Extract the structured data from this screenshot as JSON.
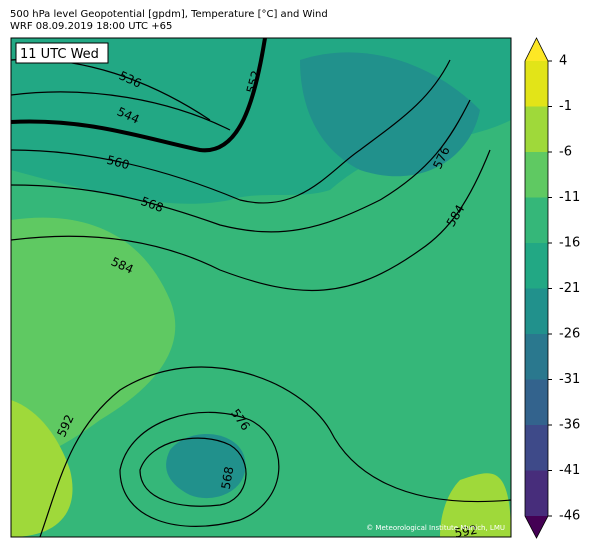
{
  "header": {
    "line1": "500 hPa level Geopotential [gpdm], Temperature [°C] and Wind",
    "line2": "WRF 08.09.2019 18:00 UTC +65"
  },
  "map": {
    "time_label": "11 UTC Wed",
    "contour_labels": [
      "536",
      "544",
      "552",
      "560",
      "568",
      "584",
      "576",
      "584",
      "592",
      "576",
      "568",
      "592"
    ],
    "credit": "© Meteorological Institute Munich, LMU"
  },
  "colorbar": {
    "ticks": [
      4,
      -1,
      -6,
      -11,
      -16,
      -21,
      -26,
      -31,
      -36,
      -41,
      -46
    ],
    "colors": [
      "#e2e418",
      "#9fd93a",
      "#5fc962",
      "#35b779",
      "#22a884",
      "#21918c",
      "#2a788e",
      "#33638d",
      "#3e4a89",
      "#472d7b"
    ],
    "over_color": "#fde725",
    "under_color": "#440154"
  }
}
